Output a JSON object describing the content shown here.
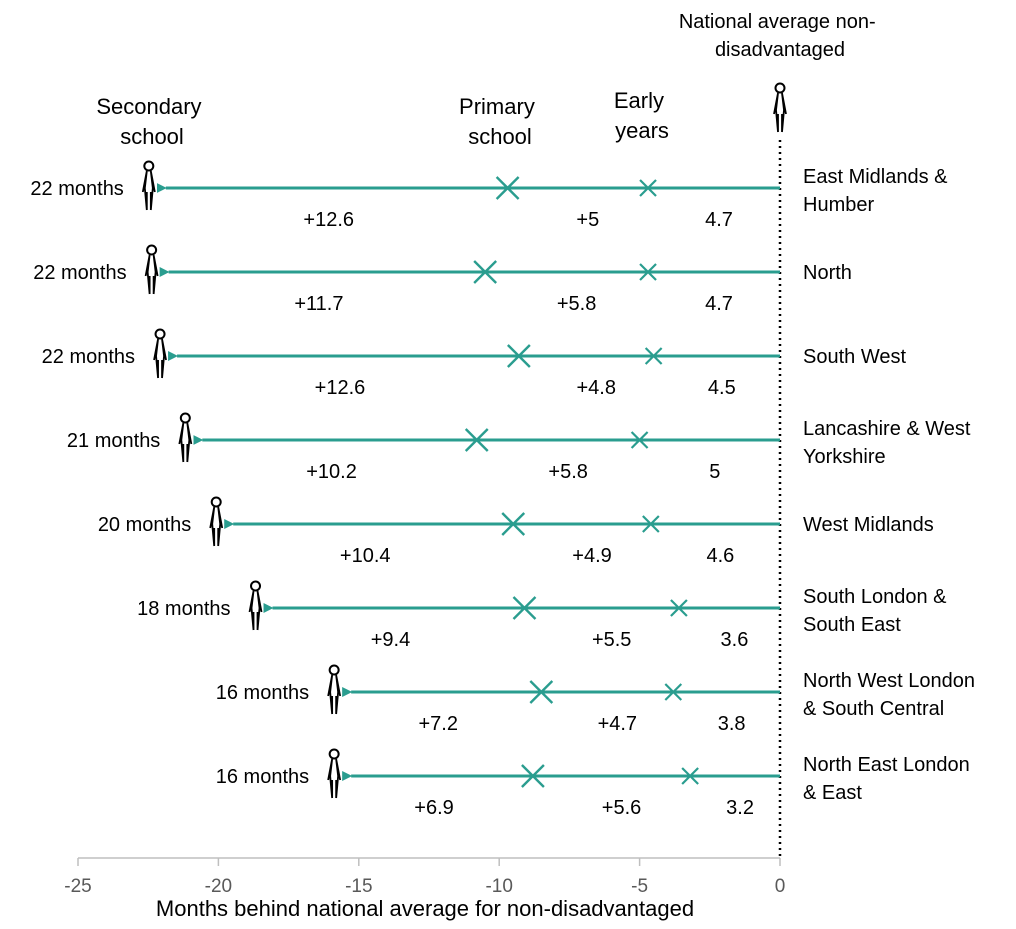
{
  "chart_data": {
    "type": "line",
    "title": "",
    "xlabel": "Months behind national average for non-disadvantaged",
    "ylabel": "",
    "xlim": [
      -25,
      0
    ],
    "x_ticks": [
      "-25",
      "-20",
      "-15",
      "-10",
      "-5",
      "0"
    ],
    "stage_labels": {
      "secondary": [
        "Secondary",
        "school"
      ],
      "primary": [
        "Primary",
        "school"
      ],
      "early": [
        "Early",
        "years"
      ],
      "national": [
        "National average non-",
        "disadvantaged"
      ]
    },
    "colors": {
      "line": "#2a9d8f",
      "axis": "#bfbfbf",
      "text": "#000000",
      "tick": "#595959"
    },
    "regions": [
      {
        "name_lines": [
          "East Midlands &",
          "Humber"
        ],
        "total_label": "22 months",
        "early_years": 4.7,
        "primary": 5,
        "secondary": 12.6,
        "early_label": "4.7",
        "primary_label": "+5",
        "secondary_label": "+12.6"
      },
      {
        "name_lines": [
          "North"
        ],
        "total_label": "22 months",
        "early_years": 4.7,
        "primary": 5.8,
        "secondary": 11.7,
        "early_label": "4.7",
        "primary_label": "+5.8",
        "secondary_label": "+11.7"
      },
      {
        "name_lines": [
          "South West"
        ],
        "total_label": "22 months",
        "early_years": 4.5,
        "primary": 4.8,
        "secondary": 12.6,
        "early_label": "4.5",
        "primary_label": "+4.8",
        "secondary_label": "+12.6"
      },
      {
        "name_lines": [
          "Lancashire & West",
          "Yorkshire"
        ],
        "total_label": "21 months",
        "early_years": 5,
        "primary": 5.8,
        "secondary": 10.2,
        "early_label": "5",
        "primary_label": "+5.8",
        "secondary_label": "+10.2"
      },
      {
        "name_lines": [
          "West Midlands"
        ],
        "total_label": "20 months",
        "early_years": 4.6,
        "primary": 4.9,
        "secondary": 10.4,
        "early_label": "4.6",
        "primary_label": "+4.9",
        "secondary_label": "+10.4"
      },
      {
        "name_lines": [
          "South London &",
          "South East"
        ],
        "total_label": "18 months",
        "early_years": 3.6,
        "primary": 5.5,
        "secondary": 9.4,
        "early_label": "3.6",
        "primary_label": "+5.5",
        "secondary_label": "+9.4"
      },
      {
        "name_lines": [
          "North West London",
          "& South Central"
        ],
        "total_label": "16 months",
        "early_years": 3.8,
        "primary": 4.7,
        "secondary": 7.2,
        "early_label": "3.8",
        "primary_label": "+4.7",
        "secondary_label": "+7.2"
      },
      {
        "name_lines": [
          "North East London",
          "& East"
        ],
        "total_label": "16 months",
        "early_years": 3.2,
        "primary": 5.6,
        "secondary": 6.9,
        "early_label": "3.2",
        "primary_label": "+5.6",
        "secondary_label": "+6.9"
      }
    ]
  }
}
